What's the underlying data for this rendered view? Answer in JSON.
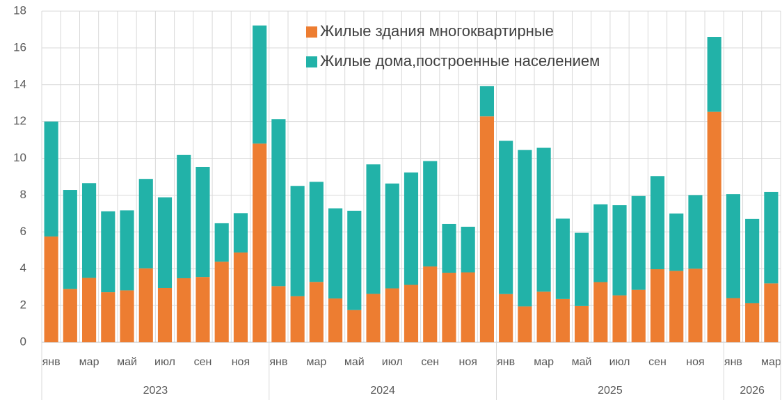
{
  "chart_data": {
    "type": "stacked_bar",
    "groups": [
      {
        "name": "2023",
        "categories": [
          "янв",
          null,
          "мар",
          null,
          "май",
          null,
          "июл",
          null,
          "сен",
          null,
          "ноя",
          null
        ]
      },
      {
        "name": "2024",
        "categories": [
          "янв",
          null,
          "мар",
          null,
          "май",
          null,
          "июл",
          null,
          "сен",
          null,
          "ноя",
          null
        ]
      },
      {
        "name": "2025",
        "categories": [
          "янв",
          null,
          "мар",
          null,
          "май",
          null,
          "июл",
          null,
          "сен",
          null,
          "ноя",
          null
        ]
      },
      {
        "name": "2026",
        "categories": [
          "янв",
          null,
          "мар"
        ]
      }
    ],
    "series": [
      {
        "name": "Жилые здания многоквартирные",
        "color": "#ed7d31",
        "values": [
          5.75,
          2.9,
          3.5,
          2.72,
          2.82,
          4.02,
          2.95,
          3.48,
          3.55,
          4.38,
          4.88,
          10.8,
          3.05,
          2.5,
          3.28,
          2.38,
          1.75,
          2.63,
          2.93,
          3.12,
          4.12,
          3.78,
          3.8,
          12.28,
          2.62,
          1.95,
          2.75,
          2.35,
          1.97,
          3.27,
          2.55,
          2.85,
          3.97,
          3.88,
          4.0,
          12.53,
          2.4,
          2.12,
          3.2
        ]
      },
      {
        "name": "Жилые дома,построенные населением",
        "color": "#22b2a8",
        "values": [
          6.25,
          5.38,
          5.15,
          4.4,
          4.35,
          4.86,
          4.93,
          6.7,
          5.98,
          2.09,
          2.14,
          6.42,
          9.08,
          6.0,
          5.44,
          4.9,
          5.4,
          7.04,
          5.7,
          6.11,
          5.73,
          2.65,
          2.48,
          1.64,
          8.33,
          8.5,
          7.82,
          4.37,
          3.98,
          4.23,
          4.9,
          5.1,
          5.06,
          3.12,
          4.0,
          4.07,
          5.65,
          4.58,
          4.97
        ]
      }
    ],
    "ylim": [
      0,
      18
    ],
    "yticks": [
      0,
      2,
      4,
      6,
      8,
      10,
      12,
      14,
      16,
      18
    ],
    "grid": true,
    "legend": "top"
  }
}
